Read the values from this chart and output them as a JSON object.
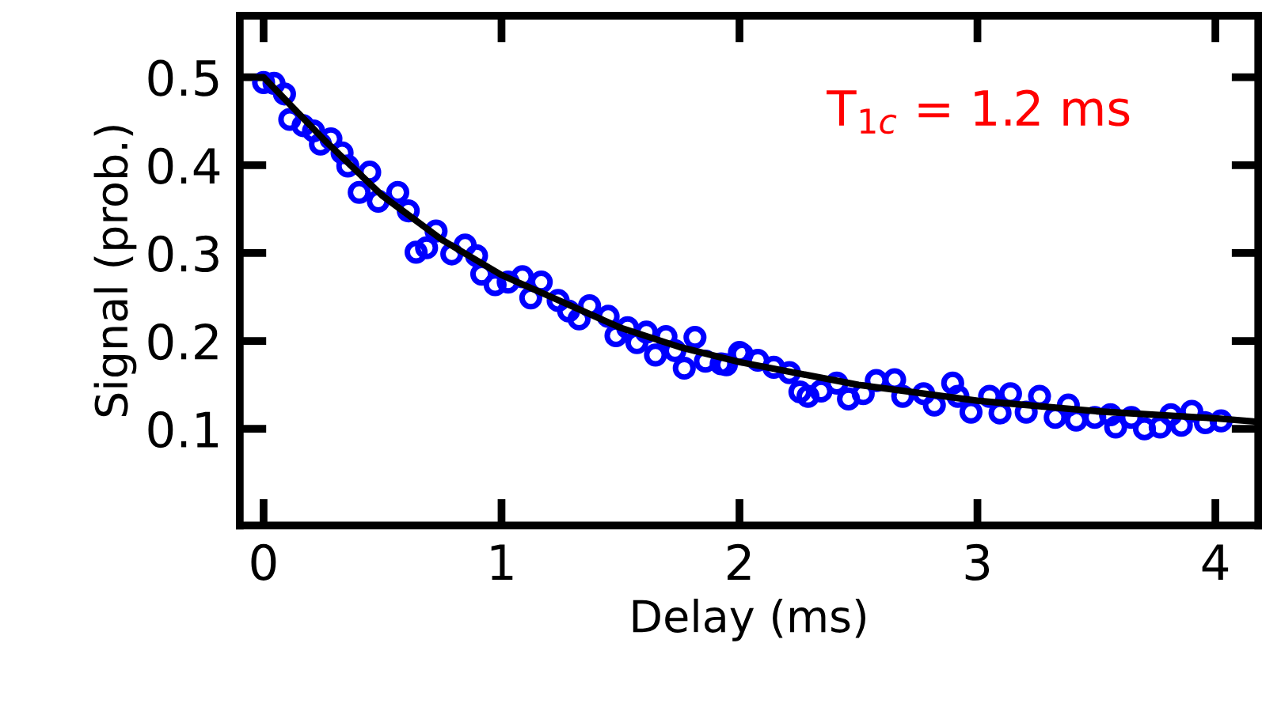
{
  "chart_data": {
    "type": "scatter",
    "xlabel": "Delay (ms)",
    "ylabel": "Signal (prob.)",
    "annotations": [
      "T$_{1c}$ = 1.2 ms"
    ],
    "xlim": [
      -0.1,
      4.18
    ],
    "ylim": [
      -0.01,
      0.57
    ],
    "xticks": [
      0,
      1,
      2,
      3,
      4
    ],
    "yticks": [
      0.1,
      0.2,
      0.3,
      0.4,
      0.5
    ],
    "grid": false,
    "legend": false,
    "marker": "circle",
    "series": [
      {
        "color": "#0000ff",
        "x": [
          0,
          0.044,
          0.088,
          0.11,
          0.166,
          0.21,
          0.239,
          0.283,
          0.33,
          0.354,
          0.402,
          0.446,
          0.482,
          0.564,
          0.608,
          0.641,
          0.685,
          0.725,
          0.791,
          0.847,
          0.895,
          0.917,
          0.973,
          1.028,
          1.088,
          1.123,
          1.167,
          1.238,
          1.282,
          1.326,
          1.37,
          1.448,
          1.481,
          1.53,
          1.569,
          1.609,
          1.647,
          1.691,
          1.729,
          1.768,
          1.813,
          1.857,
          1.923,
          1.945,
          2.0,
          2.011,
          2.077,
          2.144,
          2.21,
          2.254,
          2.288,
          2.343,
          2.409,
          2.458,
          2.52,
          2.575,
          2.652,
          2.686,
          2.774,
          2.819,
          2.896,
          2.918,
          2.973,
          3.051,
          3.095,
          3.139,
          3.205,
          3.261,
          3.327,
          3.382,
          3.415,
          3.493,
          3.559,
          3.581,
          3.647,
          3.702,
          3.768,
          3.813,
          3.857,
          3.901,
          3.958,
          4.024
        ],
        "values": [
          0.494,
          0.493,
          0.481,
          0.452,
          0.445,
          0.439,
          0.424,
          0.43,
          0.414,
          0.399,
          0.369,
          0.392,
          0.359,
          0.369,
          0.348,
          0.301,
          0.306,
          0.325,
          0.299,
          0.309,
          0.297,
          0.276,
          0.264,
          0.267,
          0.273,
          0.249,
          0.267,
          0.246,
          0.234,
          0.225,
          0.24,
          0.228,
          0.206,
          0.215,
          0.198,
          0.21,
          0.184,
          0.205,
          0.189,
          0.169,
          0.204,
          0.177,
          0.174,
          0.173,
          0.187,
          0.185,
          0.178,
          0.17,
          0.164,
          0.142,
          0.137,
          0.143,
          0.152,
          0.134,
          0.14,
          0.155,
          0.156,
          0.137,
          0.14,
          0.127,
          0.152,
          0.137,
          0.119,
          0.137,
          0.118,
          0.14,
          0.119,
          0.137,
          0.113,
          0.127,
          0.11,
          0.113,
          0.116,
          0.102,
          0.113,
          0.1,
          0.102,
          0.116,
          0.104,
          0.12,
          0.107,
          0.109
        ]
      },
      {
        "type": "line",
        "color": "#000000",
        "marker": "none",
        "line_style": "solid",
        "x": [
          -0.1,
          0,
          0.25,
          0.5,
          0.75,
          1,
          1.25,
          1.5,
          1.75,
          2,
          2.5,
          3,
          3.5,
          4,
          4.18
        ],
        "values": [
          0.5,
          0.5,
          0.43,
          0.365,
          0.315,
          0.275,
          0.245,
          0.215,
          0.193,
          0.176,
          0.15,
          0.132,
          0.12,
          0.112,
          0.108
        ]
      }
    ]
  }
}
